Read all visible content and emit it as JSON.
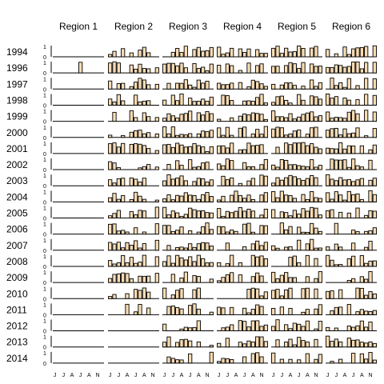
{
  "chart_data": {
    "type": "bar",
    "layout": "small-multiples",
    "regions": [
      "Region 1",
      "Region 2",
      "Region 3",
      "Region 4",
      "Region 5",
      "Region 6"
    ],
    "years": [
      "1994",
      "1996",
      "1997",
      "1998",
      "1999",
      "2000",
      "2001",
      "2002",
      "2003",
      "2004",
      "2005",
      "2006",
      "2007",
      "2008",
      "2009",
      "2010",
      "2011",
      "2012",
      "2013",
      "2014"
    ],
    "x_tick_labels": [
      "J",
      "J",
      "A",
      "J",
      "A",
      "N"
    ],
    "y_tick_labels": [
      "1",
      "0"
    ],
    "ylim": [
      0,
      1
    ],
    "bar_fill": "#f8dcb4",
    "bar_stroke": "#000000",
    "note": "Each panel shows 12 monthly bars with values in [0,1]; monthly values are estimated and generated deterministically per panel.",
    "empty_panels": [
      [
        1,
        "1994"
      ],
      [
        1,
        "1997"
      ],
      [
        1,
        "1998"
      ],
      [
        1,
        "1999"
      ],
      [
        1,
        "2000"
      ],
      [
        1,
        "2001"
      ],
      [
        1,
        "2002"
      ],
      [
        1,
        "2003"
      ],
      [
        1,
        "2004"
      ],
      [
        1,
        "2005"
      ],
      [
        1,
        "2006"
      ],
      [
        1,
        "2007"
      ],
      [
        1,
        "2008"
      ],
      [
        1,
        "2009"
      ],
      [
        1,
        "2010"
      ],
      [
        1,
        "2011"
      ],
      [
        1,
        "2012"
      ],
      [
        1,
        "2013"
      ],
      [
        1,
        "2014"
      ],
      [
        2,
        "2012"
      ],
      [
        2,
        "2013"
      ],
      [
        2,
        "2014"
      ]
    ]
  }
}
